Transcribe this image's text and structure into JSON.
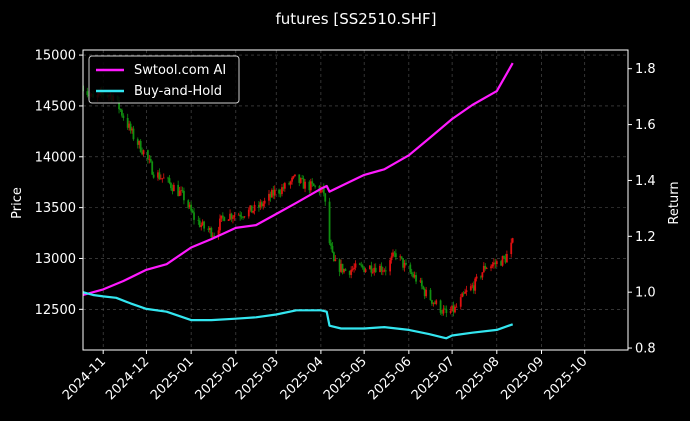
{
  "chart_data": {
    "type": "line",
    "title": "futures [SS2510.SHF]",
    "ylabel_left": "Price",
    "ylabel_right": "Return",
    "ylim_left": [
      12100,
      15050
    ],
    "ylim_right": [
      0.793,
      1.867
    ],
    "xlim": [
      "2024-10-18",
      "2025-10-31"
    ],
    "x_ticks": [
      "2024-11",
      "2024-12",
      "2025-01",
      "2025-02",
      "2025-03",
      "2025-04",
      "2025-05",
      "2025-06",
      "2025-07",
      "2025-08",
      "2025-09",
      "2025-10"
    ],
    "y_ticks_left": [
      12500,
      13000,
      13500,
      14000,
      14500,
      15000
    ],
    "y_ticks_right": [
      0.8,
      1.0,
      1.2,
      1.4,
      1.6,
      1.8
    ],
    "grid": true,
    "legend_position": "top-left",
    "colors": {
      "up": "#e01010",
      "down": "#109010",
      "ai": "#ff1aff",
      "hold": "#33e6f0",
      "background": "#000000",
      "text": "#ffffff"
    },
    "price_anchors": [
      [
        "2024-10-18",
        14700
      ],
      [
        "2024-10-25",
        14560
      ],
      [
        "2024-11-01",
        14620
      ],
      [
        "2024-11-08",
        14600
      ],
      [
        "2024-11-15",
        14400
      ],
      [
        "2024-11-22",
        14200
      ],
      [
        "2024-11-29",
        14050
      ],
      [
        "2024-12-06",
        13850
      ],
      [
        "2024-12-13",
        13780
      ],
      [
        "2024-12-20",
        13700
      ],
      [
        "2024-12-27",
        13600
      ],
      [
        "2025-01-03",
        13400
      ],
      [
        "2025-01-10",
        13300
      ],
      [
        "2025-01-17",
        13250
      ],
      [
        "2025-01-24",
        13420
      ],
      [
        "2025-02-07",
        13450
      ],
      [
        "2025-02-14",
        13480
      ],
      [
        "2025-02-21",
        13550
      ],
      [
        "2025-02-28",
        13650
      ],
      [
        "2025-03-07",
        13700
      ],
      [
        "2025-03-14",
        13780
      ],
      [
        "2025-03-21",
        13720
      ],
      [
        "2025-03-28",
        13700
      ],
      [
        "2025-04-03",
        13650
      ],
      [
        "2025-04-07",
        13150
      ],
      [
        "2025-04-10",
        12950
      ],
      [
        "2025-04-18",
        12880
      ],
      [
        "2025-04-25",
        12900
      ],
      [
        "2025-05-09",
        12920
      ],
      [
        "2025-05-16",
        12900
      ],
      [
        "2025-05-23",
        13050
      ],
      [
        "2025-05-30",
        12900
      ],
      [
        "2025-06-06",
        12800
      ],
      [
        "2025-06-13",
        12650
      ],
      [
        "2025-06-20",
        12550
      ],
      [
        "2025-06-27",
        12450
      ],
      [
        "2025-07-03",
        12500
      ],
      [
        "2025-07-10",
        12650
      ],
      [
        "2025-07-17",
        12750
      ],
      [
        "2025-07-24",
        12920
      ],
      [
        "2025-07-31",
        12950
      ],
      [
        "2025-08-07",
        13000
      ],
      [
        "2025-08-12",
        13150
      ]
    ],
    "series": [
      {
        "name": "Swtool.com AI",
        "values": [
          [
            "2024-10-18",
            0.99
          ],
          [
            "2024-10-25",
            1.0
          ],
          [
            "2024-11-01",
            1.01
          ],
          [
            "2024-11-15",
            1.04
          ],
          [
            "2024-12-01",
            1.08
          ],
          [
            "2024-12-15",
            1.1
          ],
          [
            "2025-01-01",
            1.16
          ],
          [
            "2025-01-15",
            1.19
          ],
          [
            "2025-02-01",
            1.23
          ],
          [
            "2025-02-15",
            1.24
          ],
          [
            "2025-03-01",
            1.28
          ],
          [
            "2025-03-15",
            1.32
          ],
          [
            "2025-04-01",
            1.37
          ],
          [
            "2025-04-05",
            1.38
          ],
          [
            "2025-04-07",
            1.36
          ],
          [
            "2025-04-15",
            1.38
          ],
          [
            "2025-05-01",
            1.42
          ],
          [
            "2025-05-15",
            1.44
          ],
          [
            "2025-06-01",
            1.49
          ],
          [
            "2025-06-15",
            1.55
          ],
          [
            "2025-07-01",
            1.62
          ],
          [
            "2025-07-15",
            1.67
          ],
          [
            "2025-08-01",
            1.72
          ],
          [
            "2025-08-12",
            1.82
          ]
        ]
      },
      {
        "name": "Buy-and-Hold",
        "values": [
          [
            "2024-10-18",
            1.0
          ],
          [
            "2024-10-25",
            0.99
          ],
          [
            "2024-11-01",
            0.985
          ],
          [
            "2024-11-10",
            0.98
          ],
          [
            "2024-11-20",
            0.96
          ],
          [
            "2024-12-01",
            0.94
          ],
          [
            "2024-12-15",
            0.93
          ],
          [
            "2025-01-01",
            0.9
          ],
          [
            "2025-01-15",
            0.9
          ],
          [
            "2025-02-01",
            0.905
          ],
          [
            "2025-02-15",
            0.91
          ],
          [
            "2025-03-01",
            0.92
          ],
          [
            "2025-03-15",
            0.935
          ],
          [
            "2025-04-01",
            0.935
          ],
          [
            "2025-04-05",
            0.93
          ],
          [
            "2025-04-07",
            0.88
          ],
          [
            "2025-04-15",
            0.87
          ],
          [
            "2025-05-01",
            0.87
          ],
          [
            "2025-05-15",
            0.875
          ],
          [
            "2025-06-01",
            0.865
          ],
          [
            "2025-06-15",
            0.85
          ],
          [
            "2025-06-27",
            0.835
          ],
          [
            "2025-07-01",
            0.845
          ],
          [
            "2025-07-15",
            0.855
          ],
          [
            "2025-08-01",
            0.865
          ],
          [
            "2025-08-12",
            0.885
          ]
        ]
      }
    ]
  }
}
